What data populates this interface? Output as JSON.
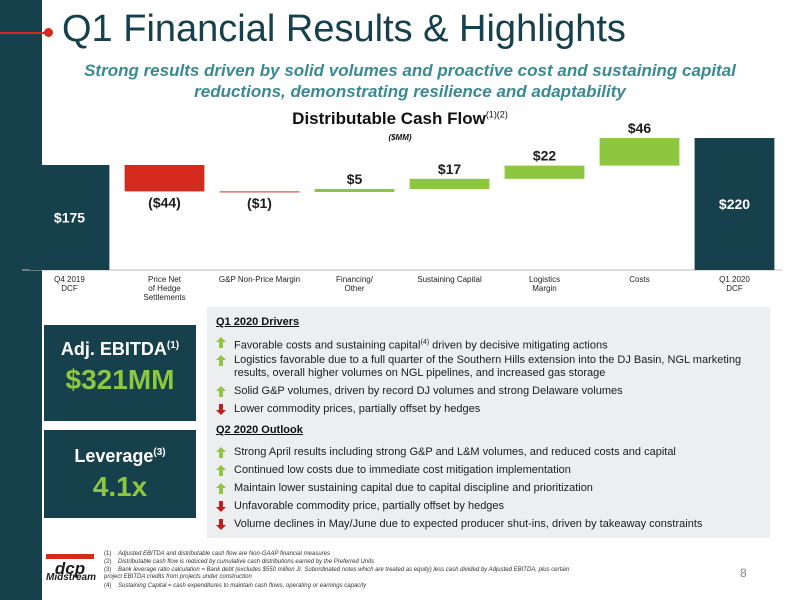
{
  "header": {
    "title": "Q1 Financial Results & Highlights",
    "subtitle": "Strong results driven by solid volumes and proactive cost and sustaining capital reductions, demonstrating resilience and adaptability"
  },
  "chart_title": {
    "text": "Distributable Cash Flow",
    "superscript": "(1)(2)",
    "units": "($MM)"
  },
  "chart_data": {
    "type": "bar",
    "subtype": "waterfall",
    "title": "Distributable Cash Flow",
    "units": "$MM",
    "categories": [
      "Q4 2019\nDCF",
      "Price Net\nof Hedge\nSettlements",
      "G&P Non-Price Margin",
      "Financing/\nOther",
      "Sustaining Capital",
      "Logistics\nMargin",
      "Costs",
      "Q1 2020\nDCF"
    ],
    "values": [
      175,
      -44,
      -1,
      5,
      17,
      22,
      46,
      220
    ],
    "value_labels": [
      "$175",
      "($44)",
      "($1)",
      "$5",
      "$17",
      "$22",
      "$46",
      "$220"
    ],
    "bar_kinds": [
      "total",
      "delta",
      "delta",
      "delta",
      "delta",
      "delta",
      "delta",
      "total"
    ],
    "colors": {
      "total": "#17404d",
      "negative": "#d52b1e",
      "positive": "#8dc63f"
    },
    "ylim": [
      0,
      240
    ]
  },
  "kpis": [
    {
      "label": "Adj. EBITDA",
      "sup": "(1)",
      "value": "$321MM"
    },
    {
      "label": "Leverage",
      "sup": "(3)",
      "value": "4.1x"
    }
  ],
  "drivers": {
    "title": "Q1 2020 Drivers",
    "items": [
      {
        "dir": "up",
        "text": "Favorable costs and sustaining capital",
        "sup": "(4)",
        "text_after": " driven by decisive mitigating actions"
      },
      {
        "dir": "up",
        "text": "Logistics favorable due to a full quarter of the Southern Hills extension into the DJ Basin, NGL marketing results, overall higher volumes on NGL pipelines, and increased gas storage",
        "sup": "",
        "text_after": ""
      },
      {
        "dir": "up",
        "text": "Solid G&P volumes, driven by record DJ volumes and strong Delaware volumes",
        "sup": "",
        "text_after": ""
      },
      {
        "dir": "down",
        "text": "Lower commodity prices, partially offset by hedges",
        "sup": "",
        "text_after": ""
      }
    ]
  },
  "outlook": {
    "title": "Q2 2020 Outlook",
    "items": [
      {
        "dir": "up",
        "text": "Strong April results including strong G&P and L&M volumes, and reduced costs and capital"
      },
      {
        "dir": "up",
        "text": "Continued low costs due to immediate cost mitigation implementation"
      },
      {
        "dir": "up",
        "text": "Maintain lower sustaining capital due to capital discipline and prioritization"
      },
      {
        "dir": "down",
        "text": "Unfavorable commodity price, partially offset by hedges"
      },
      {
        "dir": "down",
        "text": "Volume declines in May/June due to expected producer shut-ins, driven by takeaway constraints"
      }
    ]
  },
  "footnotes": [
    {
      "num": "(1)",
      "text": "Adjusted EBITDA and distributable cash flow are Non-GAAP financial measures"
    },
    {
      "num": "(2)",
      "text": "Distributable cash flow is reduced by cumulative cash distributions earned by the Preferred Units"
    },
    {
      "num": "(3)",
      "text": "Bank leverage ratio calculation = Bank debt (excludes $550 million Jr. Subordinated notes which are treated as equity) less cash divided by Adjusted EBITDA, plus certain project EBITDA credits from projects under construction"
    },
    {
      "num": "(4)",
      "text": "Sustaining Capital = cash expenditures to maintain cash flows, operating or earnings capacity"
    }
  ],
  "logo": {
    "mark": "dcp",
    "name": "Midstream"
  },
  "page_number": "8",
  "colors": {
    "navy": "#17404d",
    "teal": "#3a8a93",
    "green": "#8dc63f",
    "red": "#d52b1e"
  }
}
